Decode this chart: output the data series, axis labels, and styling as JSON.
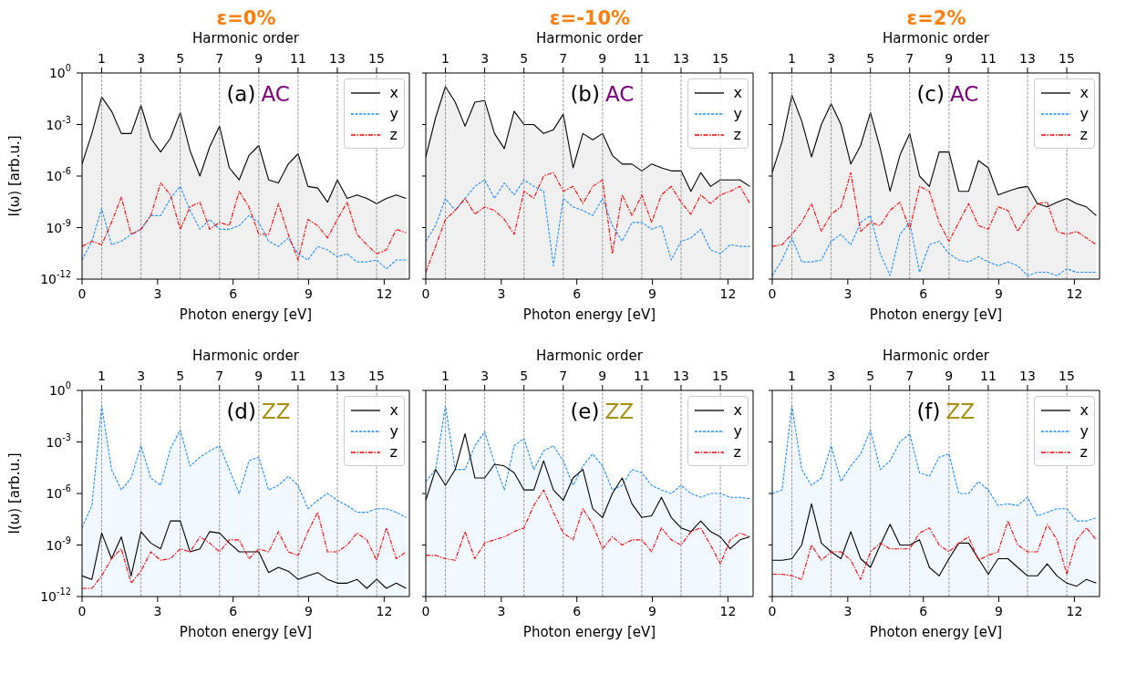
{
  "chart_data": [
    {
      "type": "line",
      "title": "ε=0%",
      "xlabel": "Photon energy [eV]",
      "x2label": "Harmonic order",
      "ylabel": "I(ω) [arb.u.]",
      "annotations": [
        "(a)",
        "AC"
      ],
      "legend": "top right",
      "log": "y",
      "xlim": [
        0,
        13
      ],
      "xticks": [
        0,
        3,
        6,
        9,
        12
      ],
      "x2lim": [
        0,
        16.67
      ],
      "x2ticks": [
        1,
        3,
        5,
        7,
        9,
        11,
        13,
        15
      ],
      "ylim": [
        1e-12,
        1
      ],
      "yticks": [
        {
          "value": 1e-12,
          "label": "10$^{-12}$"
        },
        {
          "value": 1e-09,
          "label": "10$^{-9}$"
        },
        {
          "value": 1e-06,
          "label": "10$^{-6}$"
        },
        {
          "value": 0.001,
          "label": "10$^{-3}$"
        },
        {
          "value": 1,
          "label": "10$^{0}$"
        }
      ],
      "ref_lines": [
        {
          "axis": "x",
          "value": 0.78,
          "color": "#808080",
          "line_style": "dashed"
        },
        {
          "axis": "x",
          "value": 2.34,
          "color": "#808080",
          "line_style": "dashed"
        },
        {
          "axis": "x",
          "value": 3.9,
          "color": "#808080",
          "line_style": "dashed"
        },
        {
          "axis": "x",
          "value": 5.46,
          "color": "#808080",
          "line_style": "dashed"
        },
        {
          "axis": "x",
          "value": 7.02,
          "color": "#808080",
          "line_style": "dashed"
        },
        {
          "axis": "x",
          "value": 8.58,
          "color": "#808080",
          "line_style": "dashed"
        },
        {
          "axis": "x",
          "value": 10.14,
          "color": "#808080",
          "line_style": "dashed"
        },
        {
          "axis": "x",
          "value": 11.7,
          "color": "#808080",
          "line_style": "dashed"
        }
      ],
      "x": [
        0,
        0.39,
        0.78,
        1.17,
        1.56,
        1.95,
        2.34,
        2.73,
        3.12,
        3.51,
        3.9,
        4.29,
        4.68,
        5.07,
        5.46,
        5.85,
        6.24,
        6.63,
        7.02,
        7.41,
        7.8,
        8.19,
        8.58,
        8.97,
        9.36,
        9.75,
        10.14,
        10.53,
        10.92,
        11.31,
        11.7,
        12.09,
        12.48,
        12.87
      ],
      "series": [
        {
          "name": "x",
          "type": "area",
          "color": "#000000",
          "line_style": "solid",
          "values": [
            5e-06,
            0.0003,
            0.04,
            0.006,
            0.0003,
            0.0003,
            0.013,
            0.00016,
            2.5e-05,
            0.00016,
            0.005,
            3e-05,
            1e-06,
            5e-05,
            0.0008,
            3e-06,
            6e-07,
            1.6e-05,
            6e-05,
            6e-07,
            4e-07,
            5e-06,
            2e-05,
            2.5e-07,
            2e-07,
            3e-08,
            6e-07,
            5e-08,
            8e-08,
            5e-08,
            2.5e-08,
            5e-08,
            8e-08,
            5e-08
          ]
        },
        {
          "name": "y",
          "type": "line",
          "color": "#1e90ff",
          "line_style": "dashed",
          "values": [
            1.3e-11,
            1.6e-10,
            1.3e-08,
            1e-10,
            1.6e-10,
            4e-10,
            8e-10,
            5e-09,
            5e-09,
            5e-08,
            2.5e-07,
            1e-08,
            8e-10,
            3e-09,
            8e-10,
            8e-10,
            1.3e-09,
            5e-09,
            2e-09,
            1.6e-10,
            8e-11,
            2.5e-10,
            3e-11,
            1.3e-11,
            8e-11,
            5e-11,
            2e-11,
            3e-11,
            1e-11,
            1e-11,
            1.3e-11,
            4e-12,
            1.3e-11,
            1.3e-11
          ]
        },
        {
          "name": "z",
          "type": "line",
          "color": "#ff0000",
          "line_style": "dashdot",
          "values": [
            8e-11,
            1.6e-10,
            1e-10,
            2e-09,
            6e-08,
            4e-10,
            8e-10,
            5e-09,
            4e-07,
            8e-08,
            8e-10,
            1.6e-08,
            3e-08,
            8e-10,
            2e-09,
            1.3e-09,
            1.3e-07,
            1.6e-08,
            4e-10,
            4e-10,
            2.5e-08,
            4e-10,
            1.3e-11,
            3e-09,
            1.3e-09,
            2.5e-10,
            3e-09,
            3e-08,
            4e-10,
            1e-10,
            3e-11,
            5e-11,
            8e-10,
            5e-10
          ]
        }
      ]
    },
    {
      "type": "line",
      "title": "ε=-10%",
      "xlabel": "Photon energy [eV]",
      "x2label": "Harmonic order",
      "annotations": [
        "(b)",
        "AC"
      ],
      "legend": "top right",
      "log": "y",
      "tick_labels": "x",
      "xlim": [
        0,
        13
      ],
      "xticks": [
        0,
        3,
        6,
        9,
        12
      ],
      "x2lim": [
        0,
        16.67
      ],
      "x2ticks": [
        1,
        3,
        5,
        7,
        9,
        11,
        13,
        15
      ],
      "ylim": [
        1e-12,
        1
      ],
      "yticks": [
        {
          "value": 1e-12,
          "label": null
        },
        {
          "value": 1e-09,
          "label": null
        },
        {
          "value": 1e-06,
          "label": null
        },
        {
          "value": 0.001,
          "label": null
        },
        {
          "value": 1,
          "label": null
        }
      ],
      "ref_lines": [
        {
          "axis": "x",
          "value": 0.78,
          "color": "#808080",
          "line_style": "dashed"
        },
        {
          "axis": "x",
          "value": 2.34,
          "color": "#808080",
          "line_style": "dashed"
        },
        {
          "axis": "x",
          "value": 3.9,
          "color": "#808080",
          "line_style": "dashed"
        },
        {
          "axis": "x",
          "value": 5.46,
          "color": "#808080",
          "line_style": "dashed"
        },
        {
          "axis": "x",
          "value": 7.02,
          "color": "#808080",
          "line_style": "dashed"
        },
        {
          "axis": "x",
          "value": 8.58,
          "color": "#808080",
          "line_style": "dashed"
        },
        {
          "axis": "x",
          "value": 10.14,
          "color": "#808080",
          "line_style": "dashed"
        },
        {
          "axis": "x",
          "value": 11.7,
          "color": "#808080",
          "line_style": "dashed"
        }
      ],
      "x": [
        0,
        0.39,
        0.78,
        1.17,
        1.56,
        1.95,
        2.34,
        2.73,
        3.12,
        3.51,
        3.9,
        4.29,
        4.68,
        5.07,
        5.46,
        5.85,
        6.24,
        6.63,
        7.02,
        7.41,
        7.8,
        8.19,
        8.58,
        8.97,
        9.36,
        9.75,
        10.14,
        10.53,
        10.92,
        11.31,
        11.7,
        12.09,
        12.48,
        12.87
      ],
      "series": [
        {
          "name": "x",
          "type": "area",
          "color": "#000000",
          "line_style": "solid",
          "values": [
            1.3e-05,
            0.0025,
            0.16,
            0.02,
            0.0008,
            0.02,
            0.025,
            0.0003,
            4e-05,
            0.006,
            0.001,
            0.001,
            0.0003,
            0.0005,
            0.004,
            3e-06,
            0.0003,
            0.00013,
            0.0003,
            1.6e-05,
            5e-06,
            5e-06,
            2e-06,
            5e-06,
            3e-06,
            2e-06,
            2e-06,
            1.3e-07,
            1.6e-06,
            2.5e-07,
            6e-07,
            6e-07,
            6e-07,
            2.5e-07
          ]
        },
        {
          "name": "y",
          "type": "line",
          "color": "#1e90ff",
          "line_style": "dashed",
          "values": [
            1.6e-10,
            1.3e-09,
            5e-08,
            1e-08,
            5e-08,
            2.5e-07,
            6e-07,
            5e-08,
            4e-07,
            8e-08,
            6e-07,
            2.5e-07,
            1.3e-07,
            6e-12,
            5e-08,
            1.6e-08,
            1e-08,
            5e-09,
            5e-08,
            1.3e-09,
            1.6e-10,
            2e-09,
            2e-09,
            8e-10,
            1.3e-09,
            1.3e-11,
            1.6e-10,
            2.5e-10,
            8e-10,
            5e-11,
            3e-11,
            1e-10,
            8e-11,
            8e-11
          ]
        },
        {
          "name": "z",
          "type": "line",
          "color": "#ff0000",
          "line_style": "dashdot",
          "values": [
            2.5e-12,
            8e-11,
            3e-09,
            1e-08,
            5e-08,
            6e-09,
            1.6e-08,
            1e-08,
            3e-09,
            4e-10,
            1.3e-07,
            5e-08,
            1e-06,
            1.6e-06,
            1.3e-07,
            2.5e-07,
            2.5e-08,
            2.5e-07,
            6e-07,
            3e-11,
            8e-08,
            5e-09,
            8e-08,
            2e-09,
            8e-08,
            2.5e-07,
            3e-08,
            6e-09,
            8e-08,
            2.5e-08,
            8e-08,
            1.3e-07,
            2.5e-07,
            2.5e-08
          ]
        }
      ]
    },
    {
      "type": "line",
      "title": "ε=2%",
      "xlabel": "Photon energy [eV]",
      "x2label": "Harmonic order",
      "annotations": [
        "(c)",
        "AC"
      ],
      "legend": "top right",
      "log": "y",
      "tick_labels": "x",
      "xlim": [
        0,
        13
      ],
      "xticks": [
        0,
        3,
        6,
        9,
        12
      ],
      "x2lim": [
        0,
        16.67
      ],
      "x2ticks": [
        1,
        3,
        5,
        7,
        9,
        11,
        13,
        15
      ],
      "ylim": [
        1e-12,
        1
      ],
      "yticks": [
        {
          "value": 1e-12,
          "label": null
        },
        {
          "value": 1e-09,
          "label": null
        },
        {
          "value": 1e-06,
          "label": null
        },
        {
          "value": 0.001,
          "label": null
        },
        {
          "value": 1,
          "label": null
        }
      ],
      "ref_lines": [
        {
          "axis": "x",
          "value": 0.78,
          "color": "#808080",
          "line_style": "dashed"
        },
        {
          "axis": "x",
          "value": 2.34,
          "color": "#808080",
          "line_style": "dashed"
        },
        {
          "axis": "x",
          "value": 3.9,
          "color": "#808080",
          "line_style": "dashed"
        },
        {
          "axis": "x",
          "value": 5.46,
          "color": "#808080",
          "line_style": "dashed"
        },
        {
          "axis": "x",
          "value": 7.02,
          "color": "#808080",
          "line_style": "dashed"
        },
        {
          "axis": "x",
          "value": 8.58,
          "color": "#808080",
          "line_style": "dashed"
        },
        {
          "axis": "x",
          "value": 10.14,
          "color": "#808080",
          "line_style": "dashed"
        },
        {
          "axis": "x",
          "value": 11.7,
          "color": "#808080",
          "line_style": "dashed"
        }
      ],
      "x": [
        0,
        0.39,
        0.78,
        1.17,
        1.56,
        1.95,
        2.34,
        2.73,
        3.12,
        3.51,
        3.9,
        4.29,
        4.68,
        5.07,
        5.46,
        5.85,
        6.24,
        6.63,
        7.02,
        7.41,
        7.8,
        8.19,
        8.58,
        8.97,
        9.36,
        9.75,
        10.14,
        10.53,
        10.92,
        11.31,
        11.7,
        12.09,
        12.48,
        12.87
      ],
      "series": [
        {
          "name": "x",
          "type": "area",
          "color": "#000000",
          "line_style": "solid",
          "values": [
            1.6e-06,
            0.0001,
            0.05,
            0.0016,
            1.3e-05,
            0.001,
            0.016,
            0.001,
            5e-06,
            6e-05,
            0.005,
            4e-05,
            1.3e-07,
            1.6e-05,
            0.0003,
            1e-06,
            2.5e-07,
            2.5e-05,
            2.5e-05,
            1.3e-07,
            1.3e-07,
            8e-06,
            3e-06,
            8e-08,
            1.3e-07,
            2e-07,
            2.5e-07,
            2.5e-08,
            1.6e-08,
            3e-08,
            5e-08,
            2.5e-08,
            1.6e-08,
            5e-09
          ]
        },
        {
          "name": "y",
          "type": "line",
          "color": "#1e90ff",
          "line_style": "dashed",
          "values": [
            1.6e-12,
            1.3e-11,
            2.5e-10,
            1e-11,
            1e-11,
            1.3e-11,
            1.6e-10,
            4e-10,
            1e-10,
            2e-09,
            5e-09,
            3e-11,
            1.6e-12,
            4e-10,
            2e-09,
            2.5e-12,
            1e-10,
            1.6e-10,
            3e-11,
            1.3e-11,
            1e-11,
            2e-11,
            1e-11,
            6e-12,
            1e-11,
            6e-12,
            1.6e-12,
            2.5e-12,
            2.5e-12,
            1.6e-12,
            4e-12,
            2.5e-12,
            2.5e-12,
            2.5e-12
          ]
        },
        {
          "name": "z",
          "type": "line",
          "color": "#ff0000",
          "line_style": "dashdot",
          "values": [
            8e-11,
            1e-10,
            4e-10,
            2e-09,
            2.5e-08,
            6e-10,
            6e-09,
            1.6e-08,
            1.6e-06,
            6e-10,
            2e-09,
            1.3e-09,
            1e-08,
            3e-08,
            8e-10,
            2.5e-07,
            1.3e-07,
            2e-09,
            1.6e-10,
            2e-09,
            2.5e-08,
            1.3e-09,
            8e-10,
            1.6e-08,
            1e-08,
            6e-10,
            5e-09,
            2.5e-08,
            3e-08,
            6e-10,
            4e-10,
            6e-10,
            2.5e-10,
            1e-10
          ]
        }
      ]
    },
    {
      "type": "line",
      "xlabel": "Photon energy [eV]",
      "x2label": "Harmonic order",
      "ylabel": "I(ω) [arb.u.]",
      "annotations": [
        "(d)",
        "ZZ"
      ],
      "legend": "top right",
      "log": "y",
      "xlim": [
        0,
        13
      ],
      "xticks": [
        0,
        3,
        6,
        9,
        12
      ],
      "x2lim": [
        0,
        16.67
      ],
      "x2ticks": [
        1,
        3,
        5,
        7,
        9,
        11,
        13,
        15
      ],
      "ylim": [
        1e-12,
        1
      ],
      "yticks": [
        {
          "value": 1e-12,
          "label": "10$^{-12}$"
        },
        {
          "value": 1e-09,
          "label": "10$^{-9}$"
        },
        {
          "value": 1e-06,
          "label": "10$^{-6}$"
        },
        {
          "value": 0.001,
          "label": "10$^{-3}$"
        },
        {
          "value": 1,
          "label": "10$^{0}$"
        }
      ],
      "ref_lines": [
        {
          "axis": "x",
          "value": 0.78,
          "color": "#808080",
          "line_style": "dashed"
        },
        {
          "axis": "x",
          "value": 2.34,
          "color": "#808080",
          "line_style": "dashed"
        },
        {
          "axis": "x",
          "value": 3.9,
          "color": "#808080",
          "line_style": "dashed"
        },
        {
          "axis": "x",
          "value": 5.46,
          "color": "#808080",
          "line_style": "dashed"
        },
        {
          "axis": "x",
          "value": 7.02,
          "color": "#808080",
          "line_style": "dashed"
        },
        {
          "axis": "x",
          "value": 8.58,
          "color": "#808080",
          "line_style": "dashed"
        },
        {
          "axis": "x",
          "value": 10.14,
          "color": "#808080",
          "line_style": "dashed"
        },
        {
          "axis": "x",
          "value": 11.7,
          "color": "#808080",
          "line_style": "dashed"
        }
      ],
      "x": [
        0,
        0.39,
        0.78,
        1.17,
        1.56,
        1.95,
        2.34,
        2.73,
        3.12,
        3.51,
        3.9,
        4.29,
        4.68,
        5.07,
        5.46,
        5.85,
        6.24,
        6.63,
        7.02,
        7.41,
        7.8,
        8.19,
        8.58,
        8.97,
        9.36,
        9.75,
        10.14,
        10.53,
        10.92,
        11.31,
        11.7,
        12.09,
        12.48,
        12.87
      ],
      "series": [
        {
          "name": "x",
          "type": "line",
          "color": "#000000",
          "line_style": "solid",
          "values": [
            1.6e-11,
            1e-11,
            5e-09,
            1.6e-10,
            3e-09,
            1.6e-11,
            6e-09,
            1.3e-09,
            6e-10,
            2.5e-08,
            2.5e-08,
            4e-10,
            6e-10,
            6e-09,
            5e-09,
            1.3e-09,
            4e-10,
            4e-10,
            4e-10,
            2.5e-11,
            5e-11,
            3e-11,
            1e-11,
            1.6e-11,
            2.5e-11,
            1e-11,
            6e-12,
            6e-12,
            1e-11,
            3e-12,
            1e-11,
            3e-12,
            6e-12,
            3e-12
          ]
        },
        {
          "name": "y",
          "type": "area",
          "color": "#1e90ff",
          "line_style": "dashed",
          "values": [
            1e-08,
            2e-07,
            0.13,
            2.5e-05,
            1.6e-06,
            8e-06,
            0.0006,
            8e-06,
            3e-06,
            0.0004,
            0.005,
            4e-05,
            0.00013,
            0.0003,
            0.0006,
            2.5e-05,
            1e-06,
            8e-05,
            0.00013,
            1.6e-06,
            3e-06,
            1e-05,
            3e-06,
            1.3e-07,
            4e-07,
            1e-06,
            4e-07,
            2e-07,
            8e-08,
            8e-08,
            1.3e-07,
            1.3e-07,
            8e-08,
            4e-08
          ]
        },
        {
          "name": "z",
          "type": "line",
          "color": "#ff0000",
          "line_style": "dashdot",
          "values": [
            3e-12,
            3e-12,
            1.6e-11,
            1.6e-10,
            6e-10,
            6e-12,
            3e-11,
            4e-10,
            1.3e-10,
            1.6e-10,
            6e-10,
            4e-10,
            3e-09,
            1.3e-09,
            4e-10,
            2e-09,
            2e-09,
            1.6e-10,
            6e-10,
            4e-10,
            6e-09,
            4e-10,
            2.5e-10,
            6e-09,
            8e-08,
            4e-10,
            4e-10,
            1e-09,
            5e-09,
            2e-09,
            1.3e-10,
            1e-08,
            1.6e-10,
            4e-10
          ]
        }
      ]
    },
    {
      "type": "line",
      "xlabel": "Photon energy [eV]",
      "x2label": "Harmonic order",
      "annotations": [
        "(e)",
        "ZZ"
      ],
      "legend": "top right",
      "log": "y",
      "tick_labels": "x",
      "xlim": [
        0,
        13
      ],
      "xticks": [
        0,
        3,
        6,
        9,
        12
      ],
      "x2lim": [
        0,
        16.67
      ],
      "x2ticks": [
        1,
        3,
        5,
        7,
        9,
        11,
        13,
        15
      ],
      "ylim": [
        1e-12,
        1
      ],
      "yticks": [
        {
          "value": 1e-12,
          "label": null
        },
        {
          "value": 1e-09,
          "label": null
        },
        {
          "value": 1e-06,
          "label": null
        },
        {
          "value": 0.001,
          "label": null
        },
        {
          "value": 1,
          "label": null
        }
      ],
      "ref_lines": [
        {
          "axis": "x",
          "value": 0.78,
          "color": "#808080",
          "line_style": "dashed"
        },
        {
          "axis": "x",
          "value": 2.34,
          "color": "#808080",
          "line_style": "dashed"
        },
        {
          "axis": "x",
          "value": 3.9,
          "color": "#808080",
          "line_style": "dashed"
        },
        {
          "axis": "x",
          "value": 5.46,
          "color": "#808080",
          "line_style": "dashed"
        },
        {
          "axis": "x",
          "value": 7.02,
          "color": "#808080",
          "line_style": "dashed"
        },
        {
          "axis": "x",
          "value": 8.58,
          "color": "#808080",
          "line_style": "dashed"
        },
        {
          "axis": "x",
          "value": 10.14,
          "color": "#808080",
          "line_style": "dashed"
        },
        {
          "axis": "x",
          "value": 11.7,
          "color": "#808080",
          "line_style": "dashed"
        }
      ],
      "x": [
        0,
        0.39,
        0.78,
        1.17,
        1.56,
        1.95,
        2.34,
        2.73,
        3.12,
        3.51,
        3.9,
        4.29,
        4.68,
        5.07,
        5.46,
        5.85,
        6.24,
        6.63,
        7.02,
        7.41,
        7.8,
        8.19,
        8.58,
        8.97,
        9.36,
        9.75,
        10.14,
        10.53,
        10.92,
        11.31,
        11.7,
        12.09,
        12.48,
        12.87
      ],
      "series": [
        {
          "name": "x",
          "type": "line",
          "color": "#000000",
          "line_style": "solid",
          "values": [
            4e-07,
            2.5e-05,
            3e-06,
            2.5e-05,
            0.003,
            8e-06,
            8e-06,
            5e-05,
            4e-05,
            1.6e-05,
            1.6e-06,
            1.6e-06,
            8e-05,
            1.6e-06,
            4e-07,
            8e-06,
            2.5e-05,
            1.3e-07,
            4e-08,
            1e-06,
            8e-06,
            2.5e-07,
            4e-08,
            5e-08,
            6e-07,
            4e-08,
            1e-08,
            6e-09,
            2.5e-08,
            6e-09,
            3e-09,
            6e-10,
            2e-09,
            3e-09
          ]
        },
        {
          "name": "y",
          "type": "area",
          "color": "#1e90ff",
          "line_style": "dashed",
          "values": [
            5e-06,
            2.5e-05,
            0.13,
            2.5e-05,
            2.5e-05,
            0.0006,
            0.004,
            6e-05,
            1.6e-06,
            0.0006,
            0.0016,
            2.5e-05,
            0.0003,
            0.0006,
            8e-05,
            3e-06,
            4e-05,
            0.0002,
            4e-05,
            1.6e-06,
            3e-06,
            2.5e-05,
            1.6e-05,
            3e-06,
            1.6e-06,
            1e-06,
            3e-06,
            1e-06,
            6e-07,
            1e-06,
            1e-06,
            6e-07,
            6e-07,
            5e-07
          ]
        },
        {
          "name": "z",
          "type": "line",
          "color": "#ff0000",
          "line_style": "dashdot",
          "values": [
            2.5e-10,
            2.5e-10,
            1.6e-10,
            1.3e-10,
            6e-09,
            1.6e-10,
            1.3e-09,
            2e-09,
            3e-09,
            6e-09,
            1e-08,
            2e-07,
            1.6e-06,
            8e-08,
            5e-09,
            2e-09,
            1.3e-07,
            1.6e-08,
            6e-10,
            3e-09,
            1e-09,
            2e-09,
            2e-09,
            4e-10,
            1e-08,
            2e-09,
            1e-09,
            6e-09,
            1e-08,
            1e-09,
            8e-11,
            2e-09,
            5e-09,
            3e-09
          ]
        }
      ]
    },
    {
      "type": "line",
      "xlabel": "Photon energy [eV]",
      "x2label": "Harmonic order",
      "annotations": [
        "(f)",
        "ZZ"
      ],
      "legend": "top right",
      "log": "y",
      "tick_labels": "x",
      "xlim": [
        0,
        13
      ],
      "xticks": [
        0,
        3,
        6,
        9,
        12
      ],
      "x2lim": [
        0,
        16.67
      ],
      "x2ticks": [
        1,
        3,
        5,
        7,
        9,
        11,
        13,
        15
      ],
      "ylim": [
        1e-12,
        1
      ],
      "yticks": [
        {
          "value": 1e-12,
          "label": null
        },
        {
          "value": 1e-09,
          "label": null
        },
        {
          "value": 1e-06,
          "label": null
        },
        {
          "value": 0.001,
          "label": null
        },
        {
          "value": 1,
          "label": null
        }
      ],
      "ref_lines": [
        {
          "axis": "x",
          "value": 0.78,
          "color": "#808080",
          "line_style": "dashed"
        },
        {
          "axis": "x",
          "value": 2.34,
          "color": "#808080",
          "line_style": "dashed"
        },
        {
          "axis": "x",
          "value": 3.9,
          "color": "#808080",
          "line_style": "dashed"
        },
        {
          "axis": "x",
          "value": 5.46,
          "color": "#808080",
          "line_style": "dashed"
        },
        {
          "axis": "x",
          "value": 7.02,
          "color": "#808080",
          "line_style": "dashed"
        },
        {
          "axis": "x",
          "value": 8.58,
          "color": "#808080",
          "line_style": "dashed"
        },
        {
          "axis": "x",
          "value": 10.14,
          "color": "#808080",
          "line_style": "dashed"
        },
        {
          "axis": "x",
          "value": 11.7,
          "color": "#808080",
          "line_style": "dashed"
        }
      ],
      "x": [
        0,
        0.39,
        0.78,
        1.17,
        1.56,
        1.95,
        2.34,
        2.73,
        3.12,
        3.51,
        3.9,
        4.29,
        4.68,
        5.07,
        5.46,
        5.85,
        6.24,
        6.63,
        7.02,
        7.41,
        7.8,
        8.19,
        8.58,
        8.97,
        9.36,
        9.75,
        10.14,
        10.53,
        10.92,
        11.31,
        11.7,
        12.09,
        12.48,
        12.87
      ],
      "series": [
        {
          "name": "x",
          "type": "line",
          "color": "#000000",
          "line_style": "solid",
          "values": [
            1.3e-10,
            1.3e-10,
            1.6e-10,
            1e-09,
            2.5e-07,
            1.3e-09,
            4e-10,
            1.6e-10,
            6e-09,
            1.6e-10,
            5e-11,
            1e-09,
            1.6e-08,
            1e-09,
            1e-09,
            2e-09,
            5e-11,
            1.6e-11,
            1.6e-10,
            1.3e-09,
            1.3e-09,
            1.6e-10,
            2e-11,
            1.6e-10,
            1.6e-10,
            5e-11,
            1.6e-11,
            1.6e-11,
            8e-11,
            1.6e-11,
            6e-12,
            4e-12,
            1e-11,
            6e-12
          ]
        },
        {
          "name": "y",
          "type": "area",
          "color": "#1e90ff",
          "line_style": "dashed",
          "values": [
            1e-06,
            1.6e-06,
            0.13,
            2.5e-05,
            3e-06,
            8e-06,
            0.0006,
            5e-06,
            4e-05,
            0.0002,
            0.005,
            2.5e-05,
            8e-05,
            0.001,
            0.003,
            1.6e-05,
            1e-05,
            0.00013,
            0.0002,
            1e-06,
            1e-06,
            5e-06,
            1.6e-06,
            2e-07,
            2.5e-07,
            2e-07,
            6e-07,
            5e-08,
            8e-08,
            1.3e-07,
            1.3e-07,
            2.5e-08,
            2.5e-08,
            4e-08
          ]
        },
        {
          "name": "z",
          "type": "line",
          "color": "#ff0000",
          "line_style": "dashdot",
          "values": [
            2e-11,
            2e-11,
            1.6e-11,
            1e-11,
            1e-09,
            1.3e-10,
            4e-10,
            4e-10,
            1.3e-10,
            1e-11,
            4e-10,
            1.3e-09,
            6e-10,
            6e-10,
            6e-10,
            5e-09,
            1e-08,
            1e-09,
            4e-10,
            1.3e-09,
            3e-09,
            1.3e-10,
            2.5e-10,
            4e-10,
            2.5e-08,
            1e-09,
            4e-10,
            4e-10,
            1.6e-08,
            2e-09,
            2e-11,
            2e-09,
            1e-08,
            2e-09
          ]
        }
      ]
    }
  ]
}
